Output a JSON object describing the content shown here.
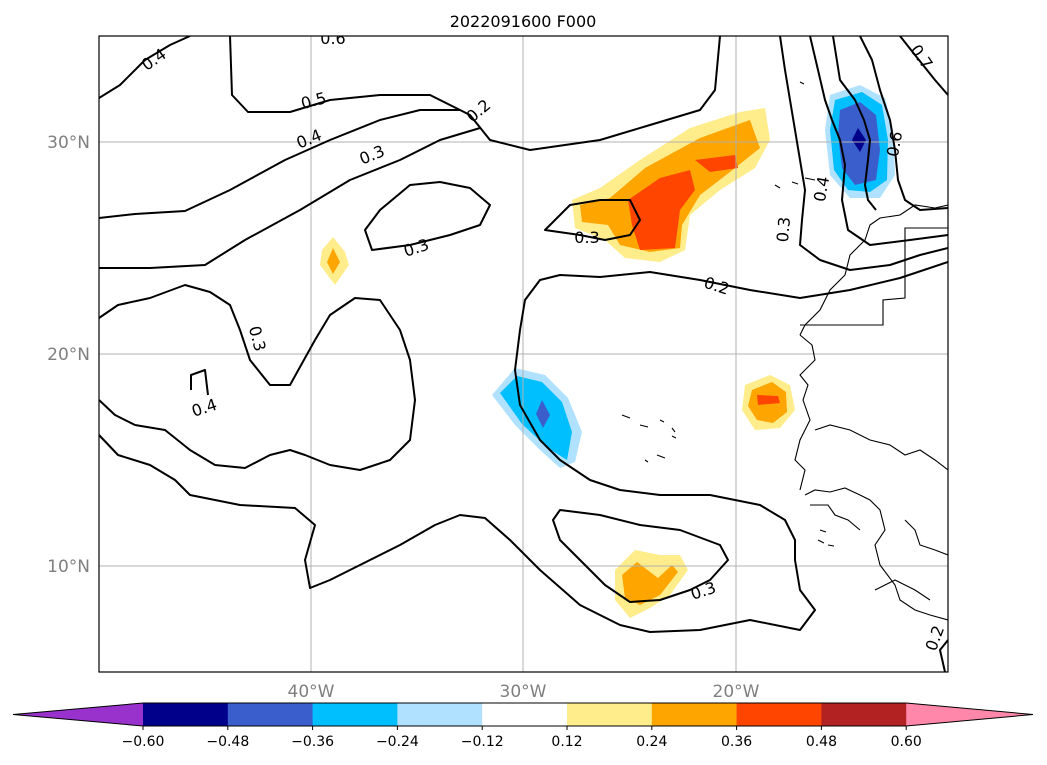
{
  "title": "2022091600 F000",
  "lat_labels": [
    "30°N",
    "20°N",
    "10°N"
  ],
  "lon_labels": [
    "40°W",
    "30°W",
    "20°W"
  ],
  "colorbar": {
    "ticks": [
      "−0.60",
      "−0.48",
      "−0.36",
      "−0.24",
      "−0.12",
      "0.12",
      "0.24",
      "0.36",
      "0.48",
      "0.60"
    ],
    "colors": [
      "#9932cc",
      "#00008b",
      "#3a5fcd",
      "#00bfff",
      "#b0e2ff",
      "#ffffff",
      "#ffec8b",
      "#ffa500",
      "#ff4500",
      "#b22222",
      "#ff88aa"
    ]
  },
  "contour_labels": [
    "0.4",
    "0.6",
    "0.5",
    "0.4",
    "0.3",
    "0.2",
    "0.3",
    "0.3",
    "0.3",
    "0.2",
    "0.3",
    "0.4",
    "0.3",
    "0.4",
    "0.6",
    "0.7",
    "0.2"
  ],
  "fill_colors": {
    "light_yellow": "#ffec8b",
    "orange": "#ffa500",
    "red_orange": "#ff4500",
    "light_blue": "#b0e2ff",
    "sky_blue": "#00bfff",
    "royal_blue": "#3a5fcd",
    "navy": "#00008b"
  }
}
